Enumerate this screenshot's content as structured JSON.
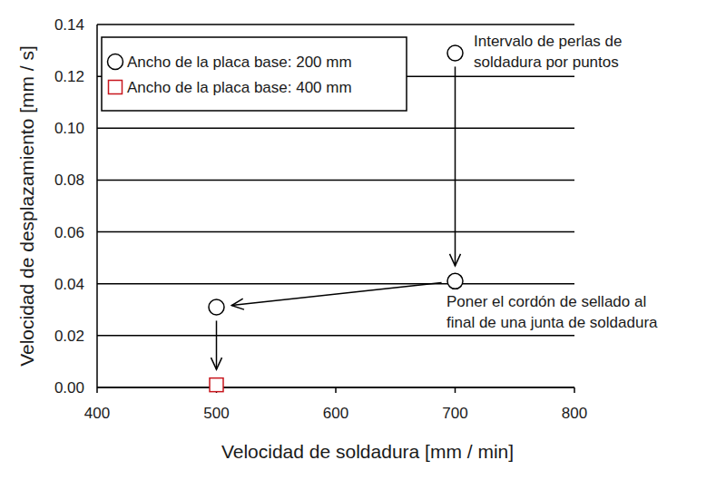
{
  "chart_data": {
    "type": "scatter",
    "x_label": "Velocidad de soldadura [mm / min]",
    "y_label": "Velocidad de desplazamiento [mm / s]",
    "series": [
      {
        "name": "Ancho de la placa base: 200 mm",
        "color": "#000000",
        "marker": "circle",
        "x": [
          700,
          700,
          500
        ],
        "values": [
          0.129,
          0.041,
          0.031
        ]
      },
      {
        "name": "Ancho de la placa base: 400 mm",
        "color": "#c8161d",
        "marker": "square",
        "x": [
          500
        ],
        "values": [
          0.001
        ]
      }
    ],
    "xlim": [
      400,
      800
    ],
    "xticks": [
      400,
      500,
      600,
      700,
      800
    ],
    "ylim": [
      0,
      0.14
    ],
    "yticks": [
      {
        "value": 0,
        "label": "0.00"
      },
      0.02,
      0.04,
      0.06,
      0.08,
      {
        "value": 0.1,
        "label": "0.10"
      },
      {
        "value": 0.12,
        "label": "0.12"
      },
      {
        "value": 0.14,
        "label": "0.14"
      }
    ],
    "grid": "y",
    "legend": "top-left",
    "annotations": [
      {
        "text": [
          "Intervalo de perlas de",
          "soldadura por puntos"
        ]
      },
      {
        "text": [
          "Poner el cordón de sellado al",
          "final de una junta de soldadura"
        ]
      }
    ]
  }
}
